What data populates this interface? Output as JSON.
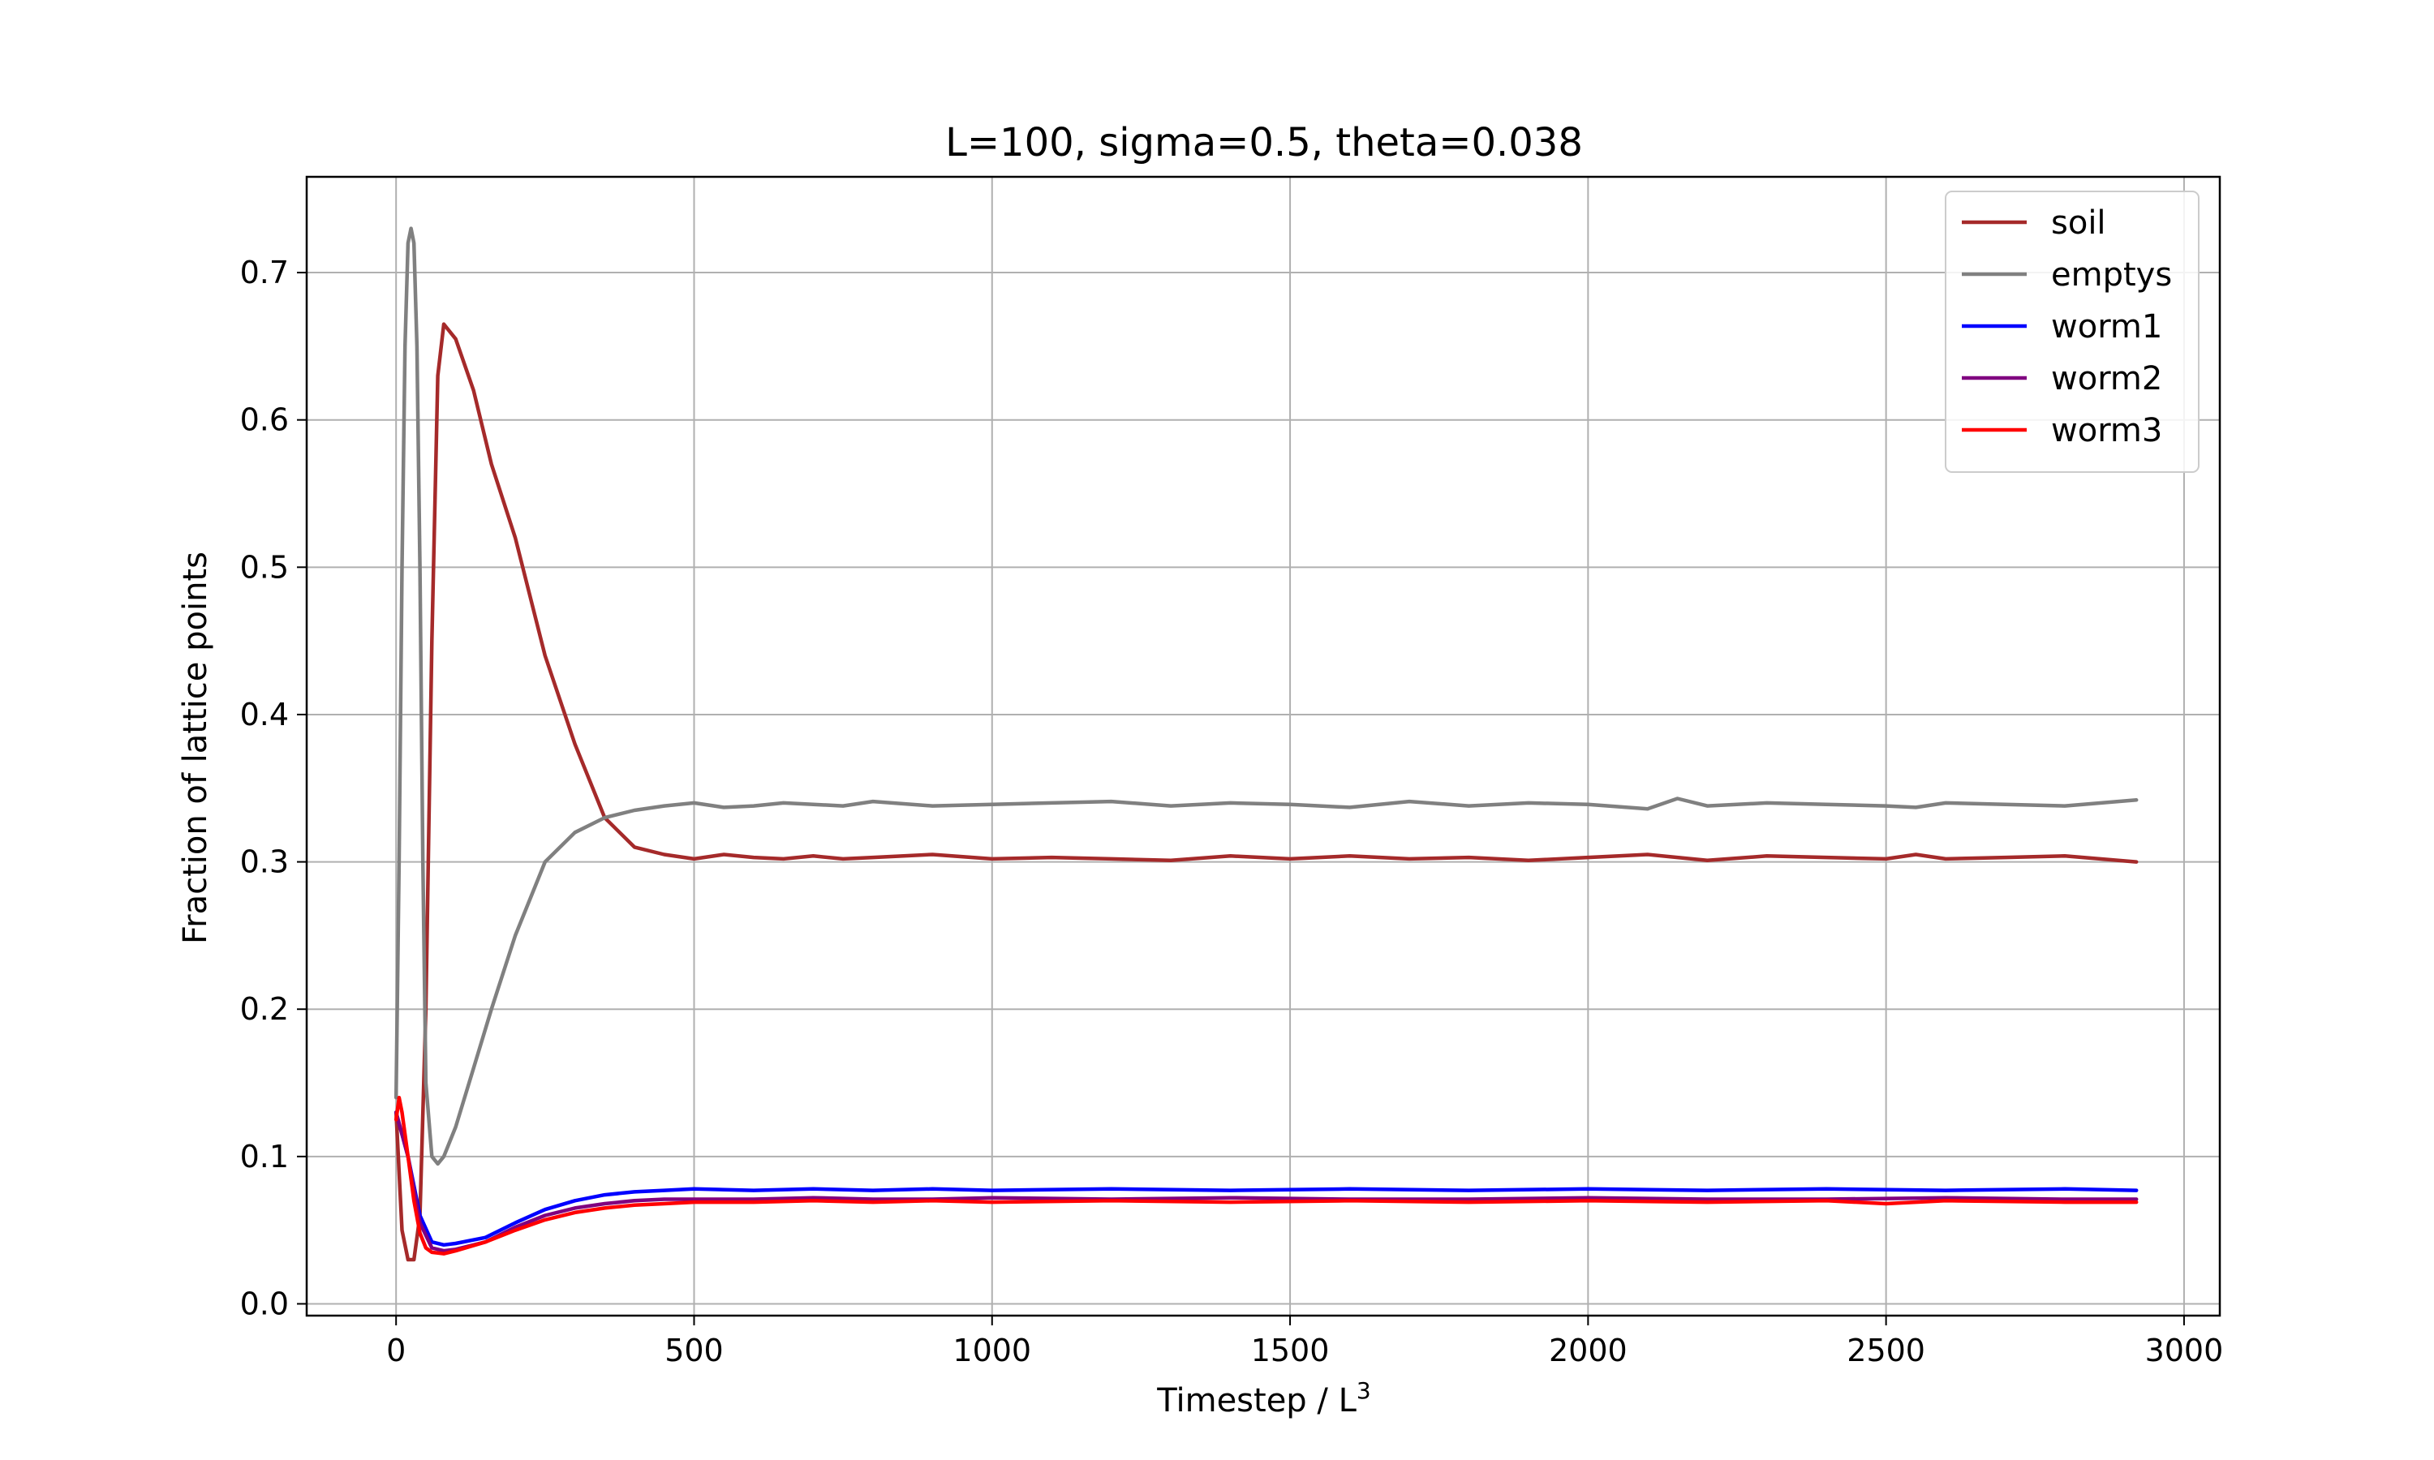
{
  "chart_data": {
    "type": "line",
    "title": "L=100, sigma=0.5, theta=0.038",
    "xlabel": "Timestep / L",
    "xlabel_superscript": "3",
    "ylabel": "Fraction of lattice points",
    "xlim": [
      -150,
      3060
    ],
    "ylim": [
      -0.008,
      0.765
    ],
    "xticks": [
      0,
      500,
      1000,
      1500,
      2000,
      2500,
      3000
    ],
    "yticks": [
      0.0,
      0.1,
      0.2,
      0.3,
      0.4,
      0.5,
      0.6,
      0.7
    ],
    "xtick_labels": [
      "0",
      "500",
      "1000",
      "1500",
      "2000",
      "2500",
      "3000"
    ],
    "ytick_labels": [
      "0.0",
      "0.1",
      "0.2",
      "0.3",
      "0.4",
      "0.5",
      "0.6",
      "0.7"
    ],
    "grid": true,
    "legend_position": "top-right",
    "series": [
      {
        "name": "soil",
        "color": "#a52a2a",
        "x": [
          0,
          10,
          20,
          30,
          40,
          50,
          60,
          70,
          80,
          100,
          130,
          160,
          200,
          250,
          300,
          350,
          400,
          450,
          500,
          550,
          600,
          650,
          700,
          750,
          800,
          900,
          1000,
          1100,
          1200,
          1300,
          1400,
          1500,
          1600,
          1700,
          1800,
          1900,
          2000,
          2100,
          2200,
          2300,
          2400,
          2500,
          2550,
          2600,
          2700,
          2800,
          2920
        ],
        "y": [
          0.13,
          0.05,
          0.03,
          0.03,
          0.06,
          0.2,
          0.45,
          0.63,
          0.665,
          0.655,
          0.62,
          0.57,
          0.52,
          0.44,
          0.38,
          0.33,
          0.31,
          0.305,
          0.302,
          0.305,
          0.303,
          0.302,
          0.304,
          0.302,
          0.303,
          0.305,
          0.302,
          0.303,
          0.302,
          0.301,
          0.304,
          0.302,
          0.304,
          0.302,
          0.303,
          0.301,
          0.303,
          0.305,
          0.301,
          0.304,
          0.303,
          0.302,
          0.305,
          0.302,
          0.303,
          0.304,
          0.3
        ]
      },
      {
        "name": "emptys",
        "color": "#808080",
        "x": [
          0,
          5,
          10,
          15,
          20,
          25,
          30,
          35,
          40,
          45,
          50,
          60,
          70,
          80,
          100,
          130,
          160,
          200,
          250,
          300,
          350,
          400,
          450,
          500,
          550,
          600,
          650,
          700,
          750,
          800,
          900,
          1000,
          1100,
          1200,
          1300,
          1400,
          1500,
          1600,
          1700,
          1800,
          1900,
          2000,
          2100,
          2150,
          2200,
          2300,
          2400,
          2500,
          2550,
          2600,
          2700,
          2800,
          2920
        ],
        "y": [
          0.14,
          0.3,
          0.5,
          0.65,
          0.72,
          0.73,
          0.72,
          0.65,
          0.5,
          0.3,
          0.15,
          0.1,
          0.095,
          0.1,
          0.12,
          0.16,
          0.2,
          0.25,
          0.3,
          0.32,
          0.33,
          0.335,
          0.338,
          0.34,
          0.337,
          0.338,
          0.34,
          0.339,
          0.338,
          0.341,
          0.338,
          0.339,
          0.34,
          0.341,
          0.338,
          0.34,
          0.339,
          0.337,
          0.341,
          0.338,
          0.34,
          0.339,
          0.336,
          0.343,
          0.338,
          0.34,
          0.339,
          0.338,
          0.337,
          0.34,
          0.339,
          0.338,
          0.342
        ]
      },
      {
        "name": "worm1",
        "color": "#0000ff",
        "x": [
          0,
          20,
          40,
          60,
          80,
          100,
          150,
          200,
          250,
          300,
          350,
          400,
          450,
          500,
          600,
          700,
          800,
          900,
          1000,
          1200,
          1400,
          1600,
          1800,
          2000,
          2200,
          2400,
          2600,
          2800,
          2920
        ],
        "y": [
          0.13,
          0.1,
          0.06,
          0.042,
          0.04,
          0.041,
          0.045,
          0.055,
          0.064,
          0.07,
          0.074,
          0.076,
          0.077,
          0.078,
          0.077,
          0.078,
          0.077,
          0.078,
          0.077,
          0.078,
          0.077,
          0.078,
          0.077,
          0.078,
          0.077,
          0.078,
          0.077,
          0.078,
          0.077
        ]
      },
      {
        "name": "worm2",
        "color": "#800080",
        "x": [
          0,
          20,
          40,
          60,
          80,
          100,
          150,
          200,
          250,
          300,
          350,
          400,
          450,
          500,
          600,
          700,
          800,
          900,
          1000,
          1200,
          1400,
          1600,
          1800,
          2000,
          2200,
          2400,
          2600,
          2800,
          2920
        ],
        "y": [
          0.13,
          0.1,
          0.055,
          0.038,
          0.036,
          0.037,
          0.042,
          0.052,
          0.06,
          0.065,
          0.068,
          0.07,
          0.071,
          0.071,
          0.071,
          0.072,
          0.071,
          0.071,
          0.072,
          0.071,
          0.072,
          0.071,
          0.071,
          0.072,
          0.071,
          0.071,
          0.072,
          0.071,
          0.071
        ]
      },
      {
        "name": "worm3",
        "color": "#ff0000",
        "x": [
          0,
          5,
          10,
          20,
          30,
          40,
          50,
          60,
          80,
          100,
          150,
          200,
          250,
          300,
          350,
          400,
          450,
          500,
          600,
          700,
          800,
          900,
          1000,
          1200,
          1400,
          1600,
          1800,
          2000,
          2200,
          2400,
          2500,
          2600,
          2800,
          2920
        ],
        "y": [
          0.125,
          0.14,
          0.13,
          0.1,
          0.07,
          0.048,
          0.038,
          0.035,
          0.034,
          0.036,
          0.042,
          0.05,
          0.057,
          0.062,
          0.065,
          0.067,
          0.068,
          0.069,
          0.069,
          0.07,
          0.069,
          0.07,
          0.069,
          0.07,
          0.069,
          0.07,
          0.069,
          0.07,
          0.069,
          0.07,
          0.068,
          0.07,
          0.069,
          0.069
        ]
      }
    ]
  }
}
